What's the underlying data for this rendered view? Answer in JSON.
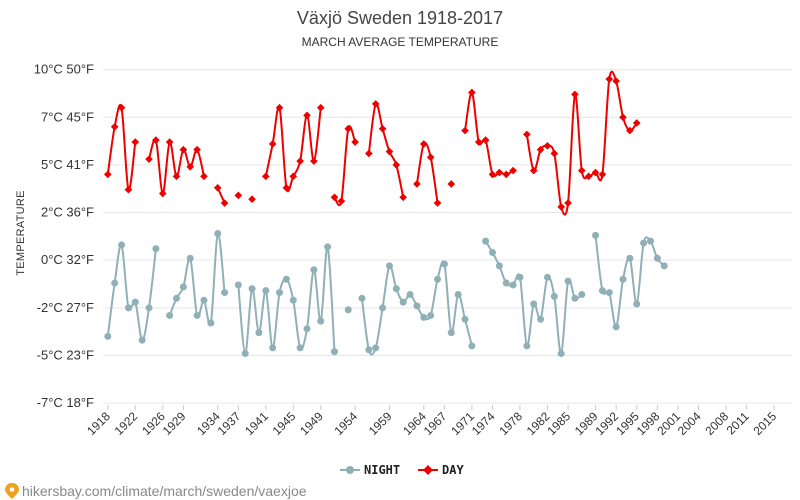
{
  "chart_data": {
    "type": "line",
    "title": "Växjö Sweden 1918-2017",
    "subtitle": "MARCH AVERAGE TEMPERATURE",
    "ylabel": "TEMPERATURE",
    "ylim": [
      -7.6,
      10.4
    ],
    "yticks": [
      {
        "value": 10,
        "label": "10°C 50°F"
      },
      {
        "value": 7.5,
        "label": "7°C 45°F"
      },
      {
        "value": 5,
        "label": "5°C 41°F"
      },
      {
        "value": 2.5,
        "label": "2°C 36°F"
      },
      {
        "value": 0,
        "label": "0°C 32°F"
      },
      {
        "value": -2.5,
        "label": "-2°C 27°F"
      },
      {
        "value": -5,
        "label": "-5°C 23°F"
      },
      {
        "value": -7.5,
        "label": "-7°C 18°F"
      }
    ],
    "xlim": [
      1917.3,
      2017.6
    ],
    "xticks": [
      1918,
      1922,
      1926,
      1929,
      1934,
      1937,
      1941,
      1945,
      1949,
      1954,
      1959,
      1964,
      1967,
      1971,
      1974,
      1978,
      1982,
      1985,
      1989,
      1992,
      1995,
      1998,
      2001,
      2004,
      2008,
      2011,
      2015
    ],
    "series": [
      {
        "name": "NIGHT",
        "color": "#90b0b8",
        "marker": "circle",
        "points": [
          [
            1918,
            -4
          ],
          [
            1919,
            -1.2
          ],
          [
            1920,
            0.8
          ],
          [
            1921,
            -2.5
          ],
          [
            1922,
            -2.2
          ],
          [
            1923,
            -4.2
          ],
          [
            1924,
            -2.5
          ],
          [
            1925,
            0.6
          ],
          null,
          [
            1927,
            -2.9
          ],
          [
            1928,
            -2
          ],
          [
            1929,
            -1.4
          ],
          [
            1930,
            0.1
          ],
          [
            1931,
            -2.9
          ],
          [
            1932,
            -2.1
          ],
          [
            1933,
            -3.3
          ],
          [
            1934,
            1.4
          ],
          [
            1935,
            -1.7
          ],
          null,
          [
            1937,
            -1.3
          ],
          [
            1938,
            -4.9
          ],
          [
            1939,
            -1.5
          ],
          [
            1940,
            -3.8
          ],
          [
            1941,
            -1.6
          ],
          [
            1942,
            -4.6
          ],
          [
            1943,
            -1.7
          ],
          [
            1944,
            -1
          ],
          [
            1945,
            -2.1
          ],
          [
            1946,
            -4.6
          ],
          [
            1947,
            -3.6
          ],
          [
            1948,
            -0.5
          ],
          [
            1949,
            -3.2
          ],
          [
            1950,
            0.7
          ],
          [
            1951,
            -4.8
          ],
          null,
          [
            1953,
            -2.6
          ],
          null,
          [
            1955,
            -2
          ],
          [
            1956,
            -4.7
          ],
          [
            1957,
            -4.6
          ],
          [
            1958,
            -2.5
          ],
          [
            1959,
            -0.3
          ],
          [
            1960,
            -1.5
          ],
          [
            1961,
            -2.2
          ],
          [
            1962,
            -1.8
          ],
          [
            1963,
            -2.4
          ],
          [
            1964,
            -3
          ],
          [
            1965,
            -2.9
          ],
          [
            1966,
            -1
          ],
          [
            1967,
            -0.2
          ],
          [
            1968,
            -3.8
          ],
          [
            1969,
            -1.8
          ],
          [
            1970,
            -3.1
          ],
          [
            1971,
            -4.5
          ],
          null,
          [
            1973,
            1
          ],
          [
            1974,
            0.4
          ],
          [
            1975,
            -0.3
          ],
          [
            1976,
            -1.2
          ],
          [
            1977,
            -1.3
          ],
          [
            1978,
            -0.9
          ],
          [
            1979,
            -4.5
          ],
          [
            1980,
            -2.3
          ],
          [
            1981,
            -3.1
          ],
          [
            1982,
            -0.9
          ],
          [
            1983,
            -1.9
          ],
          [
            1984,
            -4.9
          ],
          [
            1985,
            -1.1
          ],
          [
            1986,
            -2
          ],
          [
            1987,
            -1.8
          ],
          null,
          [
            1989,
            1.3
          ],
          [
            1990,
            -1.6
          ],
          [
            1991,
            -1.7
          ],
          [
            1992,
            -3.5
          ],
          [
            1993,
            -1
          ],
          [
            1994,
            0.1
          ],
          [
            1995,
            -2.3
          ],
          [
            1996,
            0.9
          ],
          [
            1997,
            1
          ],
          [
            1998,
            0.1
          ],
          [
            1999,
            -0.3
          ]
        ]
      },
      {
        "name": "DAY",
        "color": "#ee0000",
        "marker": "diamond",
        "points": [
          [
            1918,
            4.5
          ],
          [
            1919,
            7
          ],
          [
            1920,
            8
          ],
          [
            1921,
            3.7
          ],
          [
            1922,
            6.2
          ],
          null,
          [
            1924,
            5.3
          ],
          [
            1925,
            6.3
          ],
          [
            1926,
            3.5
          ],
          [
            1927,
            6.2
          ],
          [
            1928,
            4.4
          ],
          [
            1929,
            5.8
          ],
          [
            1930,
            4.9
          ],
          [
            1931,
            5.8
          ],
          [
            1932,
            4.4
          ],
          null,
          [
            1934,
            3.8
          ],
          [
            1935,
            3
          ],
          null,
          [
            1937,
            3.4
          ],
          null,
          [
            1939,
            3.2
          ],
          null,
          [
            1941,
            4.4
          ],
          [
            1942,
            6.1
          ],
          [
            1943,
            8
          ],
          [
            1944,
            3.8
          ],
          [
            1945,
            4.4
          ],
          [
            1946,
            5.2
          ],
          [
            1947,
            7.6
          ],
          [
            1948,
            5.2
          ],
          [
            1949,
            8
          ],
          null,
          [
            1951,
            3.3
          ],
          [
            1952,
            3.1
          ],
          [
            1953,
            6.9
          ],
          [
            1954,
            6.2
          ],
          null,
          [
            1956,
            5.6
          ],
          [
            1957,
            8.2
          ],
          [
            1958,
            6.9
          ],
          [
            1959,
            5.7
          ],
          [
            1960,
            5
          ],
          [
            1961,
            3.3
          ],
          null,
          [
            1963,
            4
          ],
          [
            1964,
            6.1
          ],
          [
            1965,
            5.4
          ],
          [
            1966,
            3
          ],
          null,
          [
            1968,
            4
          ],
          null,
          [
            1970,
            6.8
          ],
          [
            1971,
            8.8
          ],
          [
            1972,
            6.2
          ],
          [
            1973,
            6.3
          ],
          [
            1974,
            4.5
          ],
          [
            1975,
            4.6
          ],
          [
            1976,
            4.5
          ],
          [
            1977,
            4.7
          ],
          null,
          [
            1979,
            6.6
          ],
          [
            1980,
            4.7
          ],
          [
            1981,
            5.8
          ],
          [
            1982,
            6
          ],
          [
            1983,
            5.6
          ],
          [
            1984,
            2.8
          ],
          [
            1985,
            3
          ],
          [
            1986,
            8.7
          ],
          [
            1987,
            4.7
          ],
          [
            1988,
            4.4
          ],
          [
            1989,
            4.6
          ],
          [
            1990,
            4.5
          ],
          [
            1991,
            9.5
          ],
          [
            1992,
            9.4
          ],
          [
            1993,
            7.5
          ],
          [
            1994,
            6.8
          ],
          [
            1995,
            7.2
          ]
        ]
      }
    ],
    "legend": {
      "position": "bottom-center",
      "entries": [
        "NIGHT",
        "DAY"
      ]
    }
  },
  "credit": {
    "pin_icon": "location-pin-icon",
    "text": "hikersbay.com/climate/march/sweden/vaexjoe"
  }
}
